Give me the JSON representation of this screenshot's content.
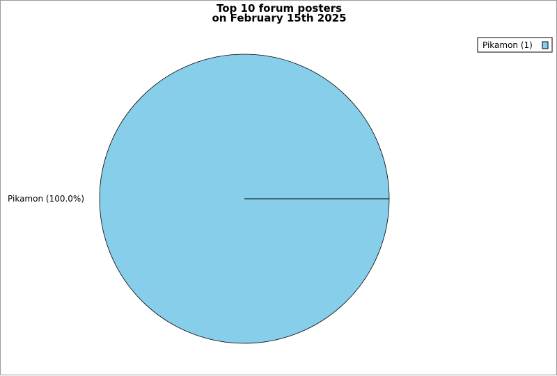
{
  "chart_data": {
    "type": "pie",
    "title": [
      "Top 10 forum posters",
      "on February 15th 2025"
    ],
    "slices": [
      {
        "name": "Pikamon",
        "value": 1,
        "percent_label": "Pikamon (100.0%)",
        "legend_label": "Pikamon (1)",
        "color": "#87ceeb"
      }
    ],
    "legend_position": "top-right"
  }
}
